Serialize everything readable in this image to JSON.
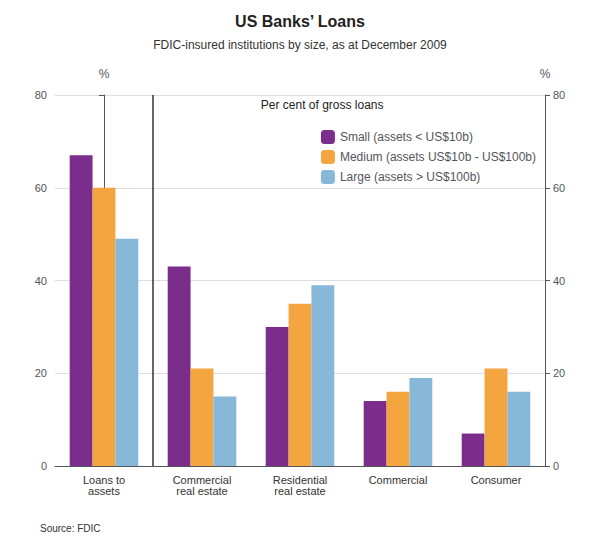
{
  "chart_data": {
    "type": "bar",
    "title": "US Banks’ Loans",
    "subtitle": "FDIC-insured institutions by size, as at December 2009",
    "annotation": "Per cent of gross loans",
    "source": "Source: FDIC",
    "categories": [
      "Loans to\nassets",
      "Commercial\nreal estate",
      "Residential\nreal estate",
      "Commercial",
      "Consumer"
    ],
    "series": [
      {
        "name": "Small (assets < US$10b)",
        "color": "#7b2d8b",
        "values": [
          67,
          43,
          30,
          14,
          7
        ]
      },
      {
        "name": "Medium (assets US$10b - US$100b)",
        "color": "#f5a540",
        "values": [
          60,
          21,
          35,
          16,
          21
        ]
      },
      {
        "name": "Large (assets > US$100b)",
        "color": "#88b8d8",
        "values": [
          49,
          15,
          39,
          19,
          16
        ]
      }
    ],
    "ylabel": "%",
    "y2label": "%",
    "ylim": [
      0,
      80
    ],
    "yticks": [
      0,
      20,
      40,
      60,
      80
    ],
    "y2lim": [
      0,
      80
    ],
    "y2ticks": [
      0,
      20,
      40,
      60,
      80
    ],
    "grid": true,
    "legend": "upper right"
  }
}
